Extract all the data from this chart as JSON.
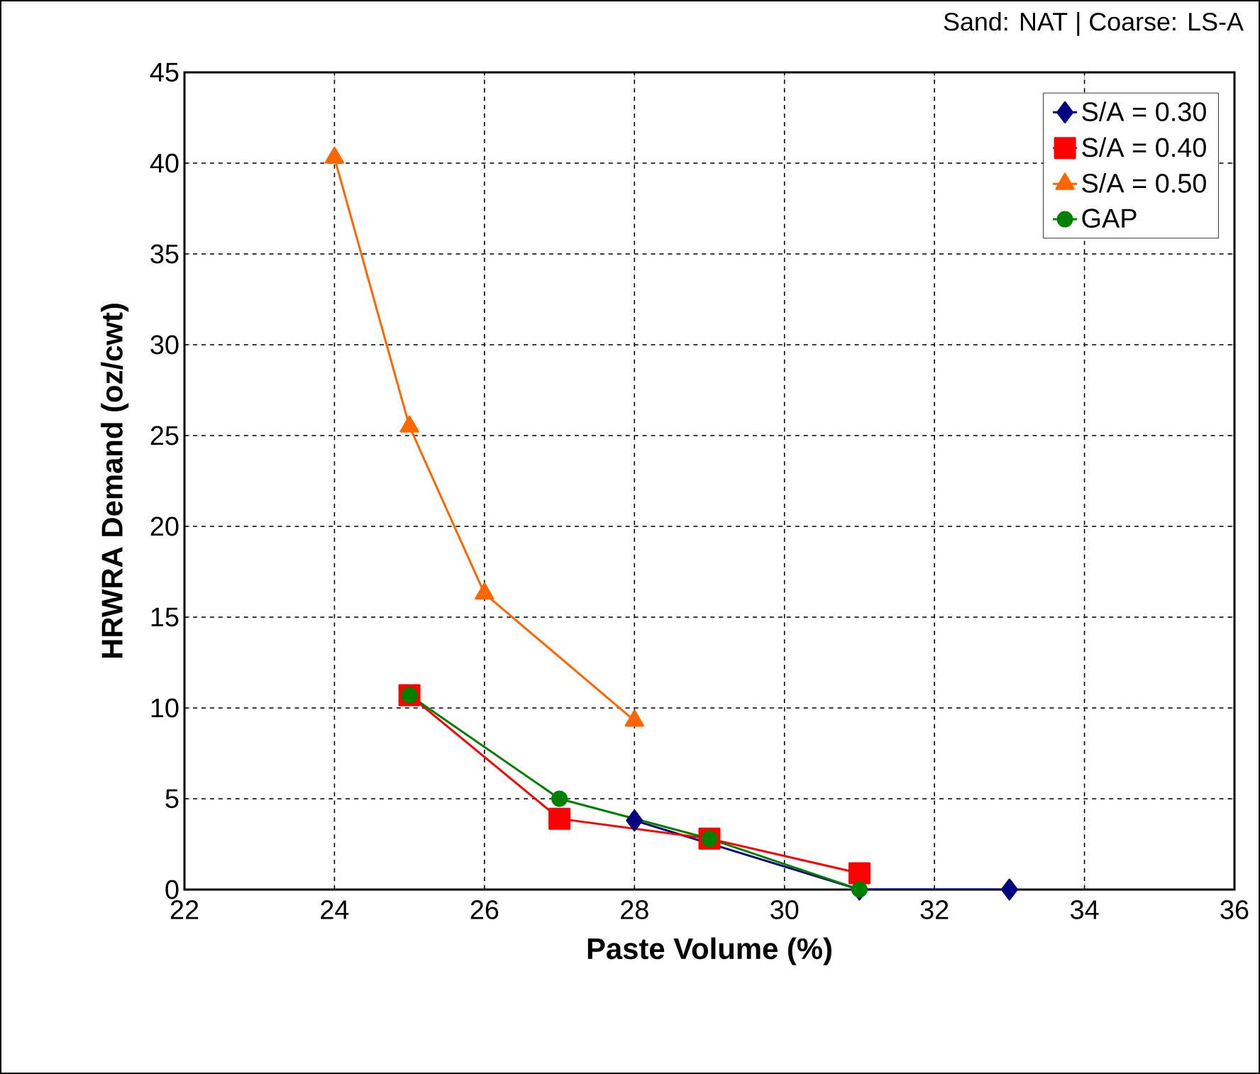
{
  "chart_data": {
    "type": "line",
    "xlabel": "Paste Volume (%)",
    "ylabel": "HRWRA Demand (oz/cwt)",
    "annotations": [
      "Sand: NAT | Coarse: LS-A"
    ],
    "xlim": [
      22,
      36
    ],
    "xticks": [
      22,
      24,
      26,
      28,
      30,
      32,
      34,
      36
    ],
    "ylim": [
      0,
      45
    ],
    "yticks": [
      0,
      5,
      10,
      15,
      20,
      25,
      30,
      35,
      40,
      45
    ],
    "grid": true,
    "legend": "top right",
    "line_style": "solid",
    "series": [
      {
        "name": "S/A = 0.30",
        "color": "#000080",
        "marker": "diamond",
        "x": [
          28,
          31,
          33
        ],
        "values": [
          3.8,
          0,
          0
        ]
      },
      {
        "name": "S/A = 0.40",
        "color": "#ff0000",
        "marker": "square",
        "x": [
          25,
          27,
          29,
          31
        ],
        "values": [
          10.7,
          3.9,
          2.8,
          0.9
        ]
      },
      {
        "name": "S/A = 0.50",
        "color": "#ff6600",
        "marker": "triangle",
        "x": [
          24,
          25,
          26,
          28
        ],
        "values": [
          40.3,
          25.5,
          16.3,
          9.3
        ]
      },
      {
        "name": "GAP",
        "color": "#008000",
        "marker": "circle",
        "x": [
          25,
          27,
          29,
          31
        ],
        "values": [
          10.7,
          5.0,
          2.8,
          0
        ]
      }
    ]
  }
}
